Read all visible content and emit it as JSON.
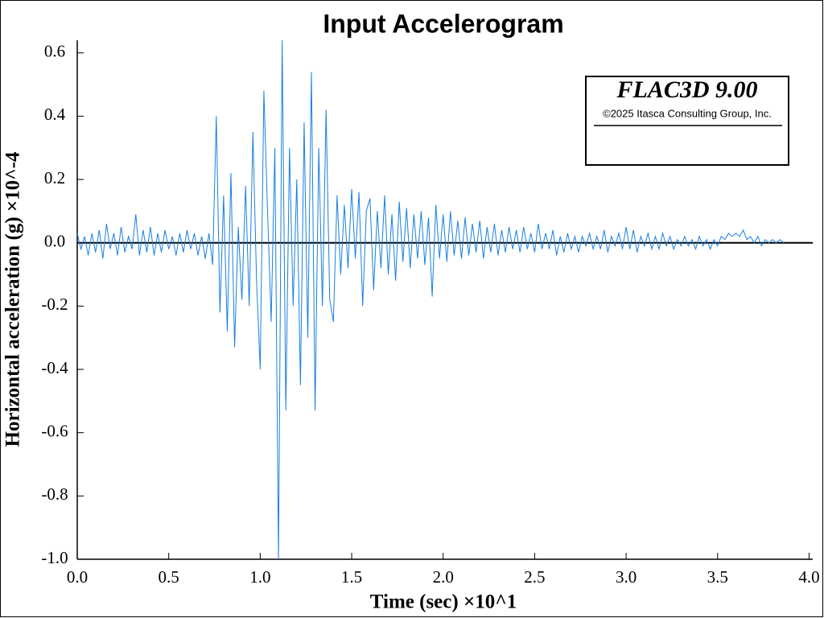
{
  "chart_data": {
    "type": "line",
    "title": "Input Accelerogram",
    "x_label": "Time (sec) ×10^1",
    "y_label": "Horizontal acceleration (g) ×10^-4",
    "legend_title": "FLAC3D 9.00",
    "legend_subtitle": "©2025 Itasca Consulting Group, Inc.",
    "color": "#1a7fe0",
    "xlim": [
      0,
      4.02
    ],
    "ylim": [
      -1.0,
      0.64
    ],
    "xticks": [
      {
        "value": 0,
        "label": "0.0"
      },
      0.5,
      {
        "value": 1,
        "label": "1.0"
      },
      1.5,
      {
        "value": 2,
        "label": "2.0"
      },
      2.5,
      {
        "value": 3,
        "label": "3.0"
      },
      3.5,
      {
        "value": 4,
        "label": "4.0"
      }
    ],
    "yticks": [
      {
        "value": -1,
        "label": "-1.0"
      },
      -0.8,
      -0.6,
      -0.4,
      -0.2,
      {
        "value": 0,
        "label": "0.0"
      },
      0.2,
      0.4,
      0.6
    ],
    "x": [
      0,
      0.02,
      0.04,
      0.06,
      0.08,
      0.1,
      0.12,
      0.14,
      0.16,
      0.18,
      0.2,
      0.22,
      0.24,
      0.26,
      0.28,
      0.3,
      0.32,
      0.34,
      0.36,
      0.38,
      0.4,
      0.42,
      0.44,
      0.46,
      0.48,
      0.5,
      0.52,
      0.54,
      0.56,
      0.58,
      0.6,
      0.62,
      0.64,
      0.66,
      0.68,
      0.7,
      0.72,
      0.74,
      0.76,
      0.78,
      0.8,
      0.82,
      0.84,
      0.86,
      0.88,
      0.9,
      0.92,
      0.94,
      0.96,
      0.98,
      1,
      1.02,
      1.04,
      1.06,
      1.08,
      1.1,
      1.12,
      1.14,
      1.16,
      1.18,
      1.2,
      1.22,
      1.24,
      1.26,
      1.28,
      1.3,
      1.32,
      1.34,
      1.36,
      1.38,
      1.4,
      1.42,
      1.44,
      1.46,
      1.48,
      1.5,
      1.52,
      1.54,
      1.56,
      1.58,
      1.6,
      1.62,
      1.64,
      1.66,
      1.68,
      1.7,
      1.72,
      1.74,
      1.76,
      1.78,
      1.8,
      1.82,
      1.84,
      1.86,
      1.88,
      1.9,
      1.92,
      1.94,
      1.96,
      1.98,
      2,
      2.02,
      2.04,
      2.06,
      2.08,
      2.1,
      2.12,
      2.14,
      2.16,
      2.18,
      2.2,
      2.22,
      2.24,
      2.26,
      2.28,
      2.3,
      2.32,
      2.34,
      2.36,
      2.38,
      2.4,
      2.42,
      2.44,
      2.46,
      2.48,
      2.5,
      2.52,
      2.54,
      2.56,
      2.58,
      2.6,
      2.62,
      2.64,
      2.66,
      2.68,
      2.7,
      2.72,
      2.74,
      2.76,
      2.78,
      2.8,
      2.82,
      2.84,
      2.86,
      2.88,
      2.9,
      2.92,
      2.94,
      2.96,
      2.98,
      3,
      3.02,
      3.04,
      3.06,
      3.08,
      3.1,
      3.12,
      3.14,
      3.16,
      3.18,
      3.2,
      3.22,
      3.24,
      3.26,
      3.28,
      3.3,
      3.32,
      3.34,
      3.36,
      3.38,
      3.4,
      3.42,
      3.44,
      3.46,
      3.48,
      3.5,
      3.52,
      3.54,
      3.56,
      3.58,
      3.6,
      3.62,
      3.64,
      3.66,
      3.68,
      3.7,
      3.72,
      3.74,
      3.76,
      3.78,
      3.8,
      3.82,
      3.84,
      3.86
    ],
    "values": [
      0.03,
      -0.02,
      0.02,
      -0.04,
      0.03,
      -0.03,
      0.04,
      -0.05,
      0.06,
      -0.02,
      0.03,
      -0.04,
      0.05,
      -0.03,
      0.02,
      -0.02,
      0.09,
      -0.04,
      0.04,
      -0.03,
      0.05,
      -0.04,
      0.03,
      -0.03,
      0.04,
      -0.02,
      0.02,
      -0.04,
      0.03,
      -0.03,
      0.04,
      -0.02,
      0.03,
      -0.04,
      0.02,
      -0.05,
      0.03,
      -0.07,
      0.4,
      -0.22,
      0.15,
      -0.28,
      0.22,
      -0.33,
      0.05,
      -0.18,
      0.18,
      -0.2,
      0.35,
      -0.12,
      -0.4,
      0.48,
      0.1,
      -0.25,
      0.3,
      -1.0,
      0.64,
      -0.53,
      0.3,
      -0.2,
      0.2,
      -0.45,
      0.38,
      -0.3,
      0.54,
      -0.53,
      0.3,
      -0.2,
      0.42,
      -0.18,
      -0.25,
      0.15,
      -0.1,
      0.12,
      -0.08,
      0.17,
      -0.05,
      0.16,
      -0.2,
      0.1,
      0.14,
      -0.15,
      0.1,
      -0.08,
      0.15,
      -0.1,
      0.09,
      -0.12,
      0.13,
      -0.06,
      0.11,
      -0.08,
      0.09,
      -0.05,
      0.1,
      -0.07,
      0.08,
      -0.17,
      0.12,
      -0.05,
      0.09,
      -0.06,
      0.1,
      -0.04,
      0.07,
      -0.05,
      0.08,
      -0.04,
      0.06,
      -0.03,
      0.07,
      -0.05,
      0.05,
      -0.03,
      0.06,
      -0.04,
      0.04,
      -0.03,
      0.05,
      -0.02,
      0.04,
      -0.03,
      0.05,
      -0.02,
      0.03,
      -0.03,
      0.06,
      -0.02,
      0.03,
      -0.02,
      0.04,
      -0.04,
      0.02,
      -0.03,
      0.03,
      -0.02,
      0.02,
      -0.03,
      0.02,
      -0.01,
      0.03,
      -0.02,
      0.02,
      -0.02,
      0.04,
      -0.03,
      0.02,
      -0.01,
      0.03,
      -0.02,
      0.05,
      -0.02,
      0.04,
      -0.03,
      0.02,
      -0.01,
      0.03,
      -0.02,
      0.02,
      -0.02,
      0.03,
      -0.01,
      0.02,
      -0.02,
      0.01,
      -0.01,
      0.02,
      -0.01,
      0.01,
      -0.02,
      0.02,
      -0.01,
      0.01,
      -0.02,
      0.01,
      -0.01,
      0.02,
      0.01,
      0.03,
      0.02,
      0.03,
      0.02,
      0.04,
      0.01,
      0.02,
      0.0,
      0.02,
      -0.01,
      0.01,
      0.0,
      0.01,
      0.0,
      0.01,
      0.0
    ]
  }
}
